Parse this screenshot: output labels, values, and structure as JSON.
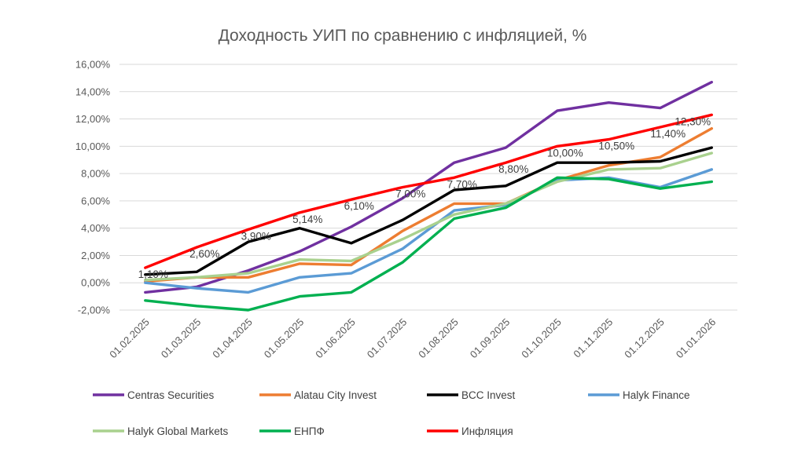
{
  "chart_data": {
    "type": "line",
    "title": "Доходность УИП по сравнению с инфляцией, %",
    "xlabel": "",
    "ylabel": "",
    "x": [
      "01.02.2025",
      "01.03.2025",
      "01.04.2025",
      "01.05.2025",
      "01.06.2025",
      "01.07.2025",
      "01.08.2025",
      "01.09.2025",
      "01.10.2025",
      "01.11.2025",
      "01.12.2025",
      "01.01.2026"
    ],
    "ylim": [
      -2,
      16
    ],
    "yticks": [
      "-2,00%",
      "0,00%",
      "2,00%",
      "4,00%",
      "6,00%",
      "8,00%",
      "10,00%",
      "12,00%",
      "14,00%",
      "16,00%"
    ],
    "grid": true,
    "legend_position": "bottom",
    "series": [
      {
        "name": "Centras Securities",
        "color": "#7030A0",
        "values": [
          -0.7,
          -0.3,
          0.9,
          2.3,
          4.1,
          6.2,
          8.8,
          9.9,
          12.6,
          13.2,
          12.8,
          14.7
        ]
      },
      {
        "name": "Alatau City Invest",
        "color": "#ED7D31",
        "values": [
          0.1,
          0.4,
          0.4,
          1.4,
          1.3,
          3.8,
          5.8,
          5.8,
          7.5,
          8.6,
          9.2,
          11.3
        ]
      },
      {
        "name": "BCC Invest",
        "color": "#000000",
        "values": [
          0.6,
          0.8,
          3.0,
          4.0,
          2.9,
          4.6,
          6.8,
          7.1,
          8.8,
          8.8,
          8.9,
          9.9
        ]
      },
      {
        "name": "Halyk Finance",
        "color": "#5B9BD5",
        "values": [
          0.0,
          -0.4,
          -0.7,
          0.4,
          0.7,
          2.5,
          5.3,
          5.7,
          7.5,
          7.7,
          7.0,
          8.3
        ]
      },
      {
        "name": "Halyk Global Markets",
        "color": "#A9D18E",
        "values": [
          0.2,
          0.4,
          0.7,
          1.7,
          1.6,
          3.2,
          5.0,
          5.8,
          7.4,
          8.3,
          8.4,
          9.5
        ]
      },
      {
        "name": "ЕНПФ",
        "color": "#00B050",
        "values": [
          -1.3,
          -1.7,
          -2.0,
          -1.0,
          -0.7,
          1.5,
          4.7,
          5.5,
          7.7,
          7.6,
          6.9,
          7.4
        ]
      },
      {
        "name": "Инфляция",
        "color": "#FF0000",
        "values": [
          1.1,
          2.6,
          3.9,
          5.14,
          6.1,
          7.0,
          7.7,
          8.8,
          10.0,
          10.5,
          11.4,
          12.3
        ]
      }
    ],
    "annotations": {
      "series": "Инфляция",
      "labels": [
        "1,10%",
        "2,60%",
        "3,90%",
        "5,14%",
        "6,10%",
        "7,00%",
        "7,70%",
        "8,80%",
        "10,00%",
        "10,50%",
        "11,40%",
        "12,30%"
      ]
    }
  }
}
